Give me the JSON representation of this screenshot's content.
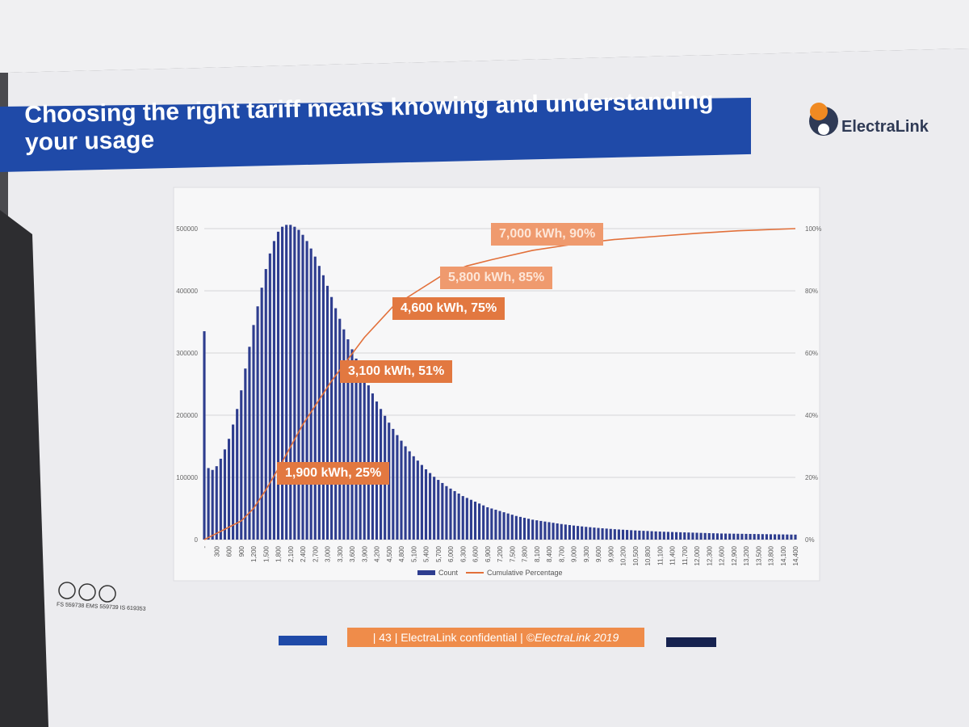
{
  "slide": {
    "title": "Choosing the right tariff means knowing and understanding your usage",
    "logo": "ElectraLink",
    "footer": {
      "page": "| 43 |",
      "confidential": "ElectraLink confidential |",
      "copyright": "©ElectraLink 2019"
    },
    "cert_text": "FS 559738  EMS 559739  IS 619353",
    "colors": {
      "bars": "#2e3d8f",
      "cumulative": "#e2703a",
      "title_bg": "#1f4aa8",
      "callout": "#e27840"
    }
  },
  "chart_data": {
    "type": "bar",
    "title": "",
    "xlabel": "",
    "ylabel": "",
    "ylim": [
      0,
      500000
    ],
    "y2lim": [
      0,
      100
    ],
    "y_ticks": [
      "0",
      "100000",
      "200000",
      "300000",
      "400000",
      "500000"
    ],
    "y2_ticks": [
      "0%",
      "20%",
      "40%",
      "60%",
      "80%",
      "100%"
    ],
    "grid": true,
    "legend": {
      "placement": "bottom",
      "entries": [
        "Count",
        "Cumulative Percentage"
      ]
    },
    "x_tick_labels": [
      "-",
      "300",
      "600",
      "900",
      "1,200",
      "1,500",
      "1,800",
      "2,100",
      "2,400",
      "2,700",
      "3,000",
      "3,300",
      "3,600",
      "3,900",
      "4,200",
      "4,500",
      "4,800",
      "5,100",
      "5,400",
      "5,700",
      "6,000",
      "6,300",
      "6,600",
      "6,900",
      "7,200",
      "7,500",
      "7,800",
      "8,100",
      "8,400",
      "8,700",
      "9,000",
      "9,300",
      "9,600",
      "9,900",
      "10,200",
      "10,500",
      "10,800",
      "11,100",
      "11,400",
      "11,700",
      "12,000",
      "12,300",
      "12,600",
      "12,900",
      "13,200",
      "13,500",
      "13,800",
      "14,100",
      "14,400"
    ],
    "bin_width_kwh": 100,
    "series": [
      {
        "name": "Count",
        "type": "bar",
        "x": [
          0,
          100,
          200,
          300,
          400,
          500,
          600,
          700,
          800,
          900,
          1000,
          1100,
          1200,
          1300,
          1400,
          1500,
          1600,
          1700,
          1800,
          1900,
          2000,
          2100,
          2200,
          2300,
          2400,
          2500,
          2600,
          2700,
          2800,
          2900,
          3000,
          3100,
          3200,
          3300,
          3400,
          3500,
          3600,
          3700,
          3800,
          3900,
          4000,
          4100,
          4200,
          4300,
          4400,
          4500,
          4600,
          4700,
          4800,
          4900,
          5000,
          5100,
          5200,
          5300,
          5400,
          5500,
          5600,
          5700,
          5800,
          5900,
          6000,
          6100,
          6200,
          6300,
          6400,
          6500,
          6600,
          6700,
          6800,
          6900,
          7000,
          7100,
          7200,
          7300,
          7400,
          7500,
          7600,
          7700,
          7800,
          7900,
          8000,
          8100,
          8200,
          8300,
          8400,
          8500,
          8600,
          8700,
          8800,
          8900,
          9000,
          9100,
          9200,
          9300,
          9400,
          9500,
          9600,
          9700,
          9800,
          9900,
          10000,
          10100,
          10200,
          10300,
          10400,
          10500,
          10600,
          10700,
          10800,
          10900,
          11000,
          11100,
          11200,
          11300,
          11400,
          11500,
          11600,
          11700,
          11800,
          11900,
          12000,
          12100,
          12200,
          12300,
          12400,
          12500,
          12600,
          12700,
          12800,
          12900,
          13000,
          13100,
          13200,
          13300,
          13400,
          13500,
          13600,
          13700,
          13800,
          13900,
          14000,
          14100,
          14200,
          14300,
          14400
        ],
        "values": [
          335000,
          115000,
          112000,
          118000,
          130000,
          145000,
          162000,
          185000,
          210000,
          240000,
          275000,
          310000,
          345000,
          375000,
          405000,
          435000,
          460000,
          480000,
          495000,
          503000,
          506000,
          506000,
          503000,
          498000,
          490000,
          480000,
          468000,
          455000,
          440000,
          425000,
          408000,
          390000,
          372000,
          355000,
          338000,
          322000,
          306000,
          291000,
          276000,
          262000,
          248000,
          235000,
          222000,
          210000,
          199000,
          188000,
          178000,
          168000,
          159000,
          150000,
          142000,
          134000,
          127000,
          120000,
          113000,
          107000,
          101000,
          96000,
          91000,
          86000,
          82000,
          78000,
          74000,
          70000,
          67000,
          64000,
          61000,
          58000,
          55000,
          52000,
          50000,
          48000,
          46000,
          44000,
          42000,
          40000,
          38000,
          36500,
          35000,
          33500,
          32000,
          31000,
          30000,
          29000,
          28000,
          27000,
          26000,
          25000,
          24200,
          23400,
          22600,
          21900,
          21200,
          20500,
          19900,
          19300,
          18700,
          18200,
          17700,
          17200,
          16700,
          16300,
          15900,
          15500,
          15100,
          14700,
          14400,
          14100,
          13800,
          13500,
          13200,
          12900,
          12600,
          12400,
          12200,
          12000,
          11800,
          11600,
          11400,
          11200,
          11000,
          10800,
          10600,
          10400,
          10200,
          10000,
          9800,
          9700,
          9600,
          9500,
          9400,
          9300,
          9200,
          9100,
          9000,
          8900,
          8800,
          8700,
          8600,
          8500,
          8400,
          8300,
          8200,
          8100,
          8000
        ]
      },
      {
        "name": "Cumulative Percentage",
        "type": "line",
        "axis": "right",
        "x": [
          0,
          300,
          600,
          900,
          1200,
          1500,
          1900,
          2400,
          3100,
          3900,
          4600,
          5200,
          5800,
          6400,
          7000,
          8000,
          9000,
          10000,
          11000,
          12000,
          13000,
          14400
        ],
        "values": [
          0,
          2,
          4,
          6,
          10,
          16,
          25,
          37,
          51,
          65,
          75,
          80,
          85,
          88,
          90,
          93,
          95,
          96.5,
          97.5,
          98.5,
          99.3,
          100
        ]
      }
    ],
    "annotations": [
      {
        "label": "1,900 kWh, 25%",
        "x": 1900,
        "y": 25
      },
      {
        "label": "3,100 kWh, 51%",
        "x": 3100,
        "y": 51
      },
      {
        "label": "4,600 kWh, 75%",
        "x": 4600,
        "y": 75
      },
      {
        "label": "5,800 kWh, 85%",
        "x": 5800,
        "y": 85
      },
      {
        "label": "7,000 kWh, 90%",
        "x": 7000,
        "y": 90
      }
    ]
  }
}
